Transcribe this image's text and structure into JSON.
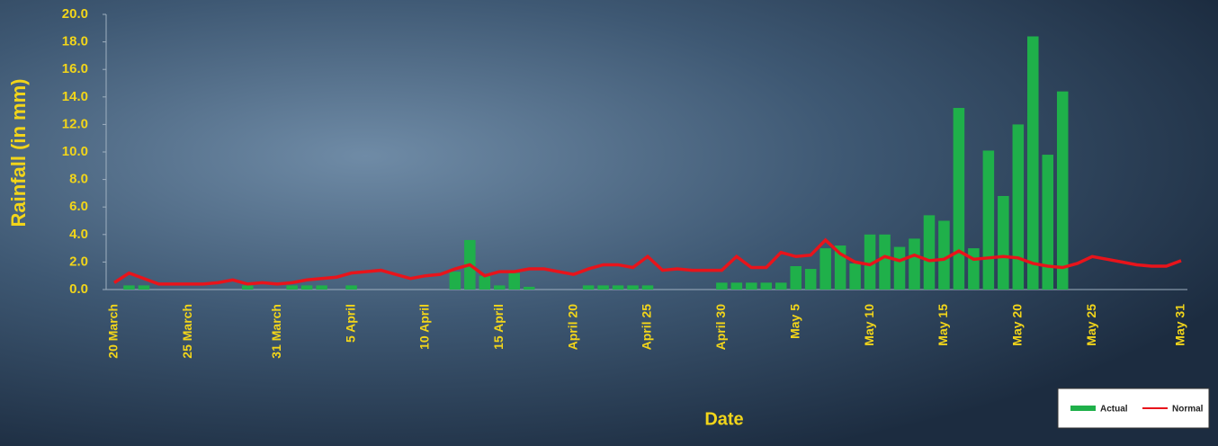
{
  "chart_data": {
    "type": "bar_line",
    "x_label": "Date",
    "y_label": "Rainfall (in mm)",
    "categories": [
      "20 March",
      null,
      null,
      null,
      null,
      "25 March",
      null,
      null,
      null,
      null,
      null,
      "31 March",
      null,
      null,
      null,
      null,
      "5 April",
      null,
      null,
      null,
      null,
      "10 April",
      null,
      null,
      null,
      null,
      "15 April",
      null,
      null,
      null,
      null,
      "April 20",
      null,
      null,
      null,
      null,
      "April 25",
      null,
      null,
      null,
      null,
      "April 30",
      null,
      null,
      null,
      null,
      "May 5",
      null,
      null,
      null,
      null,
      "May 10",
      null,
      null,
      null,
      null,
      "May 15",
      null,
      null,
      null,
      null,
      "May 20",
      null,
      null,
      null,
      null,
      "May 25",
      null,
      null,
      null,
      null,
      null,
      "May 31"
    ],
    "series": [
      {
        "name": "Actual",
        "kind": "bar",
        "color": "#1fb04a",
        "values": [
          0,
          0.3,
          0.3,
          0,
          0,
          0,
          0,
          0,
          0,
          0.3,
          0,
          0,
          0.3,
          0.3,
          0.3,
          0,
          0.3,
          0,
          0,
          0,
          0,
          0,
          0,
          1.3,
          3.6,
          1.0,
          0.3,
          1.2,
          0.2,
          0,
          0,
          0,
          0.3,
          0.3,
          0.3,
          0.3,
          0.3,
          0,
          0,
          0,
          0,
          0.5,
          0.5,
          0.5,
          0.5,
          0.5,
          1.7,
          1.5,
          3.0,
          3.2,
          1.9,
          4.0,
          4.0,
          3.1,
          3.7,
          5.4,
          5.0,
          13.2,
          3.0,
          10.1,
          6.8,
          12.0,
          18.4,
          9.8,
          14.4,
          0,
          0,
          0,
          0,
          0,
          0,
          0,
          0
        ]
      },
      {
        "name": "Normal",
        "kind": "line",
        "color": "#e8141b",
        "values": [
          0.5,
          1.2,
          0.8,
          0.4,
          0.4,
          0.4,
          0.4,
          0.5,
          0.7,
          0.4,
          0.5,
          0.4,
          0.5,
          0.7,
          0.8,
          0.9,
          1.2,
          1.3,
          1.4,
          1.1,
          0.8,
          1.0,
          1.1,
          1.5,
          1.8,
          1.0,
          1.3,
          1.3,
          1.5,
          1.5,
          1.3,
          1.1,
          1.5,
          1.8,
          1.8,
          1.6,
          2.4,
          1.4,
          1.5,
          1.4,
          1.4,
          1.4,
          2.4,
          1.6,
          1.6,
          2.7,
          2.4,
          2.5,
          3.6,
          2.6,
          2.0,
          1.8,
          2.4,
          2.1,
          2.5,
          2.1,
          2.2,
          2.8,
          2.2,
          2.3,
          2.4,
          2.3,
          1.9,
          1.7,
          1.6,
          1.9,
          2.4,
          2.2,
          2.0,
          1.8,
          1.7,
          1.7,
          2.1
        ]
      }
    ],
    "ylim": [
      0,
      20
    ],
    "yticks": [
      {
        "value": 0,
        "label": "0.0"
      },
      {
        "value": 2,
        "label": "2.0"
      },
      {
        "value": 4,
        "label": "4.0"
      },
      {
        "value": 6,
        "label": "6.0"
      },
      {
        "value": 8,
        "label": "8.0"
      },
      {
        "value": 10,
        "label": "10.0"
      },
      {
        "value": 12,
        "label": "12.0"
      },
      {
        "value": 14,
        "label": "14.0"
      },
      {
        "value": 16,
        "label": "16.0"
      },
      {
        "value": 18,
        "label": "18.0"
      },
      {
        "value": 20,
        "label": "20.0"
      }
    ],
    "legend": "bottom-right",
    "text_color": "#f2d51a"
  }
}
